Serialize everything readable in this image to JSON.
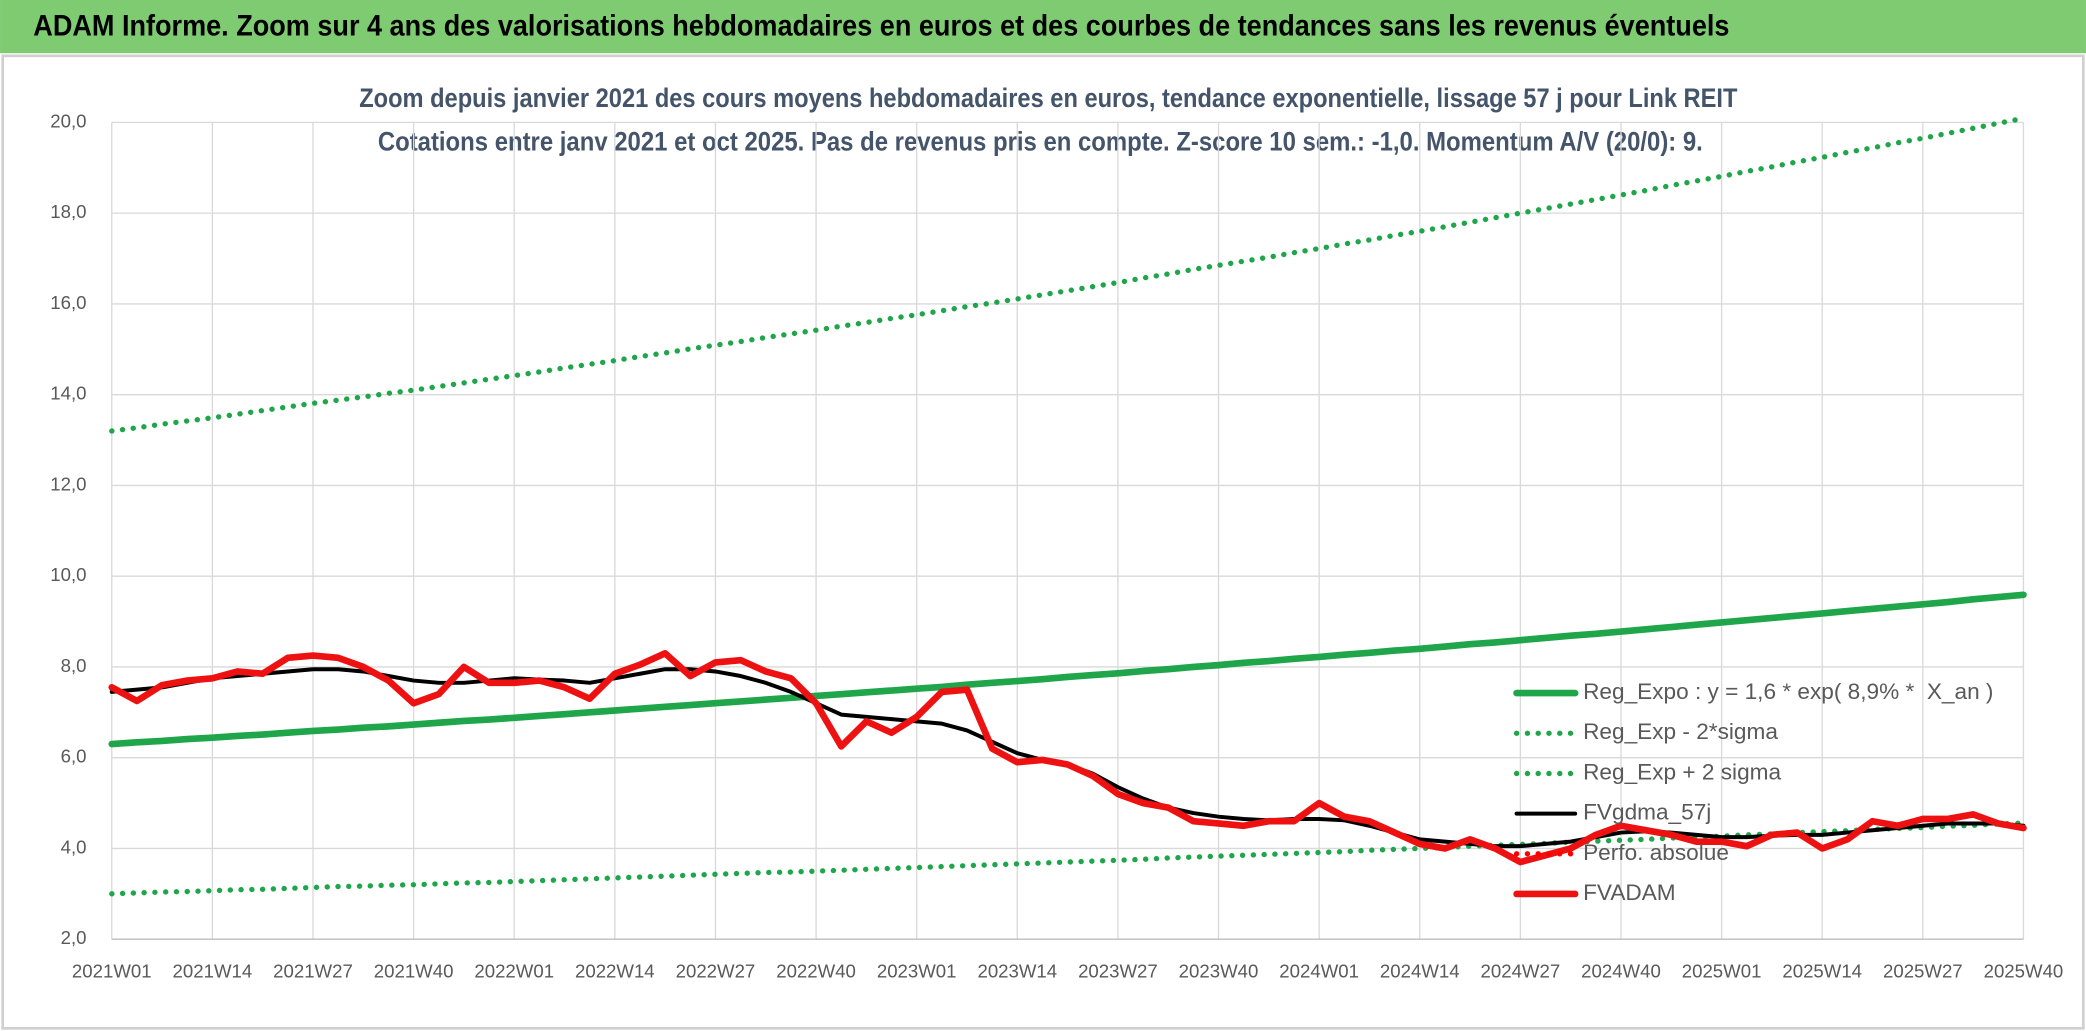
{
  "header": {
    "title": "ADAM Informe. Zoom sur 4 ans des valorisations hebdomadaires en euros et des courbes de tendances sans les revenus éventuels"
  },
  "chart_data": {
    "type": "line",
    "title": "Zoom depuis janvier 2021 des cours moyens hebdomadaires en euros, tendance exponentielle, lissage 57 j pour Link REIT",
    "subtitle": "Cotations entre janv 2021 et oct 2025. Pas de revenus pris en compte. Z-score 10 sem.: -1,0. Momentum A/V (20/0): 9.",
    "categories": [
      "2021W01",
      null,
      null,
      null,
      "2021W14",
      null,
      null,
      null,
      "2021W27",
      null,
      null,
      null,
      "2021W40",
      null,
      null,
      null,
      "2022W01",
      null,
      null,
      null,
      "2022W14",
      null,
      null,
      null,
      "2022W27",
      null,
      null,
      null,
      "2022W40",
      null,
      null,
      null,
      "2023W01",
      null,
      null,
      null,
      "2023W14",
      null,
      null,
      null,
      "2023W27",
      null,
      null,
      null,
      "2023W40",
      null,
      null,
      null,
      "2024W01",
      null,
      null,
      null,
      "2024W14",
      null,
      null,
      null,
      "2024W27",
      null,
      null,
      null,
      "2024W40",
      null,
      null,
      null,
      "2025W01",
      null,
      null,
      null,
      "2025W14",
      null,
      null,
      null,
      "2025W27",
      null,
      null,
      null,
      "2025W40"
    ],
    "ylim": [
      2,
      20
    ],
    "yticks": [
      {
        "value": 2,
        "label": "2,0"
      },
      {
        "value": 4,
        "label": "4,0"
      },
      {
        "value": 6,
        "label": "6,0"
      },
      {
        "value": 8,
        "label": "8,0"
      },
      {
        "value": 10,
        "label": "10,0"
      },
      {
        "value": 12,
        "label": "12,0"
      },
      {
        "value": 14,
        "label": "14,0"
      },
      {
        "value": 16,
        "label": "16,0"
      },
      {
        "value": 18,
        "label": "18,0"
      },
      {
        "value": 20,
        "label": "20,0"
      }
    ],
    "grid": true,
    "legend": "lower right",
    "series": [
      {
        "name": "Reg_Expo : y = 1,6 * exp( 8,9% *  X_an )",
        "color": "#1fa64b",
        "dash": "solid",
        "values": [
          6.3,
          6.34,
          6.37,
          6.41,
          6.44,
          6.48,
          6.51,
          6.55,
          6.59,
          6.62,
          6.66,
          6.69,
          6.73,
          6.77,
          6.81,
          6.84,
          6.88,
          6.92,
          6.96,
          7.0,
          7.04,
          7.08,
          7.12,
          7.16,
          7.2,
          7.24,
          7.28,
          7.32,
          7.36,
          7.4,
          7.44,
          7.48,
          7.52,
          7.56,
          7.61,
          7.65,
          7.69,
          7.73,
          7.78,
          7.82,
          7.86,
          7.91,
          7.95,
          8.0,
          8.04,
          8.09,
          8.13,
          8.18,
          8.22,
          8.27,
          8.31,
          8.36,
          8.4,
          8.45,
          8.5,
          8.54,
          8.59,
          8.64,
          8.69,
          8.73,
          8.78,
          8.83,
          8.88,
          8.93,
          8.98,
          9.03,
          9.08,
          9.13,
          9.18,
          9.23,
          9.28,
          9.33,
          9.38,
          9.43,
          9.49,
          9.54,
          9.59
        ]
      },
      {
        "name": "Reg_Exp - 2*sigma",
        "color": "#1fa64b",
        "dash": "dot",
        "values": [
          3.0,
          3.02,
          3.04,
          3.05,
          3.07,
          3.09,
          3.1,
          3.12,
          3.14,
          3.16,
          3.17,
          3.19,
          3.2,
          3.22,
          3.24,
          3.25,
          3.27,
          3.29,
          3.31,
          3.33,
          3.35,
          3.37,
          3.39,
          3.41,
          3.43,
          3.45,
          3.47,
          3.48,
          3.5,
          3.52,
          3.54,
          3.56,
          3.58,
          3.6,
          3.62,
          3.64,
          3.66,
          3.68,
          3.7,
          3.72,
          3.74,
          3.76,
          3.79,
          3.81,
          3.83,
          3.85,
          3.87,
          3.89,
          3.91,
          3.93,
          3.96,
          3.98,
          4.0,
          4.02,
          4.05,
          4.07,
          4.09,
          4.11,
          4.14,
          4.16,
          4.18,
          4.2,
          4.23,
          4.25,
          4.27,
          4.3,
          4.32,
          4.35,
          4.37,
          4.39,
          4.42,
          4.44,
          4.46,
          4.49,
          4.51,
          4.54,
          4.56
        ]
      },
      {
        "name": "Reg_Exp + 2 sigma",
        "color": "#1fa64b",
        "dash": "dot",
        "values": [
          13.2,
          13.27,
          13.35,
          13.42,
          13.49,
          13.57,
          13.65,
          13.73,
          13.81,
          13.88,
          13.95,
          14.03,
          14.1,
          14.18,
          14.26,
          14.34,
          14.42,
          14.5,
          14.59,
          14.67,
          14.75,
          14.84,
          14.92,
          15.01,
          15.09,
          15.17,
          15.26,
          15.34,
          15.42,
          15.51,
          15.59,
          15.68,
          15.76,
          15.85,
          15.94,
          16.02,
          16.11,
          16.2,
          16.29,
          16.38,
          16.47,
          16.57,
          16.66,
          16.76,
          16.85,
          16.94,
          17.03,
          17.13,
          17.22,
          17.32,
          17.41,
          17.51,
          17.6,
          17.7,
          17.8,
          17.9,
          18.0,
          18.1,
          18.2,
          18.3,
          18.4,
          18.5,
          18.61,
          18.71,
          18.81,
          18.92,
          19.02,
          19.13,
          19.23,
          19.34,
          19.44,
          19.55,
          19.65,
          19.76,
          19.87,
          19.98,
          20.09
        ]
      },
      {
        "name": "FVgdma_57j",
        "color": "#000000",
        "dash": "solid",
        "values": [
          7.45,
          7.5,
          7.55,
          7.65,
          7.75,
          7.8,
          7.85,
          7.9,
          7.95,
          7.95,
          7.9,
          7.8,
          7.7,
          7.65,
          7.65,
          7.7,
          7.75,
          7.72,
          7.7,
          7.65,
          7.75,
          7.85,
          7.95,
          7.95,
          7.9,
          7.8,
          7.65,
          7.45,
          7.2,
          6.95,
          6.9,
          6.85,
          6.8,
          6.75,
          6.6,
          6.35,
          6.1,
          5.95,
          5.85,
          5.65,
          5.35,
          5.1,
          4.9,
          4.78,
          4.7,
          4.65,
          4.62,
          4.65,
          4.65,
          4.62,
          4.5,
          4.35,
          4.2,
          4.15,
          4.1,
          4.05,
          4.05,
          4.1,
          4.15,
          4.25,
          4.35,
          4.38,
          4.35,
          4.3,
          4.25,
          4.25,
          4.28,
          4.3,
          4.3,
          4.35,
          4.4,
          4.45,
          4.5,
          4.55,
          4.55,
          4.55,
          4.5
        ]
      },
      {
        "name": "Perfo. absolue",
        "color": "#ff0000",
        "dash": "dot"
      },
      {
        "name": "FVADAM",
        "color": "#ee1111",
        "dash": "solid",
        "values": [
          7.55,
          7.25,
          7.6,
          7.7,
          7.75,
          7.9,
          7.85,
          8.2,
          8.25,
          8.2,
          8,
          7.7,
          7.2,
          7.4,
          8,
          7.65,
          7.65,
          7.7,
          7.55,
          7.3,
          7.85,
          8.05,
          8.3,
          7.8,
          8.1,
          8.15,
          7.9,
          7.75,
          7.2,
          6.25,
          6.8,
          6.55,
          6.9,
          7.45,
          7.5,
          6.2,
          5.9,
          5.95,
          5.85,
          5.6,
          5.2,
          5,
          4.9,
          4.6,
          4.55,
          4.5,
          4.6,
          4.6,
          5,
          4.7,
          4.6,
          4.35,
          4.1,
          4,
          4.2,
          4,
          3.7,
          3.85,
          4,
          4.3,
          4.5,
          4.4,
          4.3,
          4.15,
          4.15,
          4.05,
          4.3,
          4.35,
          4,
          4.2,
          4.6,
          4.5,
          4.65,
          4.65,
          4.75,
          4.55,
          4.45
        ]
      }
    ]
  }
}
